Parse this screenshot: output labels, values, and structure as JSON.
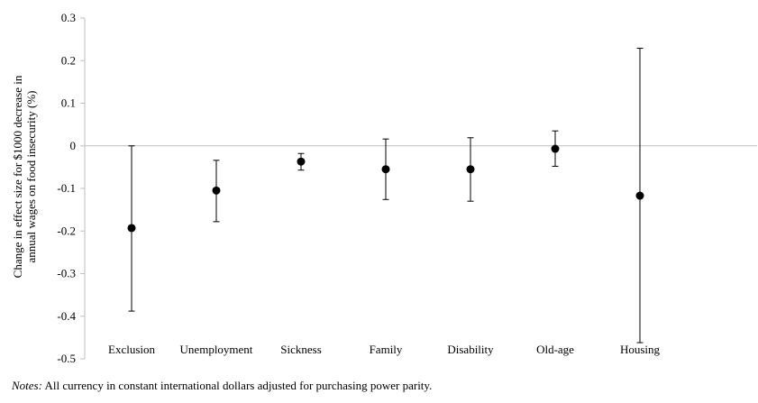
{
  "chart_data": {
    "type": "scatter",
    "categories": [
      "Exclusion",
      "Unemployment",
      "Sickness",
      "Family",
      "Disability",
      "Old-age",
      "Housing"
    ],
    "values": [
      -0.193,
      -0.105,
      -0.037,
      -0.055,
      -0.055,
      -0.007,
      -0.117
    ],
    "ci_lower": [
      -0.388,
      -0.178,
      -0.057,
      -0.126,
      -0.13,
      -0.048,
      -0.462
    ],
    "ci_upper": [
      0.0,
      -0.034,
      -0.018,
      0.016,
      0.019,
      0.035,
      0.229
    ],
    "ylabel_line1": "Change in effect size for $1000 decrease in",
    "ylabel_line2": "annual wages on food insecurity (%)",
    "xlabel": "",
    "ylim": [
      -0.5,
      0.3
    ],
    "yticks": [
      0.3,
      0.2,
      0.1,
      0,
      -0.1,
      -0.2,
      -0.3,
      -0.4,
      -0.5
    ],
    "ytick_labels": [
      "0.3",
      "0.2",
      "0.1",
      "0",
      "-0.1",
      "-0.2",
      "-0.3",
      "-0.4",
      "-0.5"
    ],
    "zero_line": true,
    "grid": false,
    "legend": false
  },
  "notes": {
    "label": "Notes:",
    "text": " All currency in constant international dollars adjusted for purchasing power parity."
  }
}
